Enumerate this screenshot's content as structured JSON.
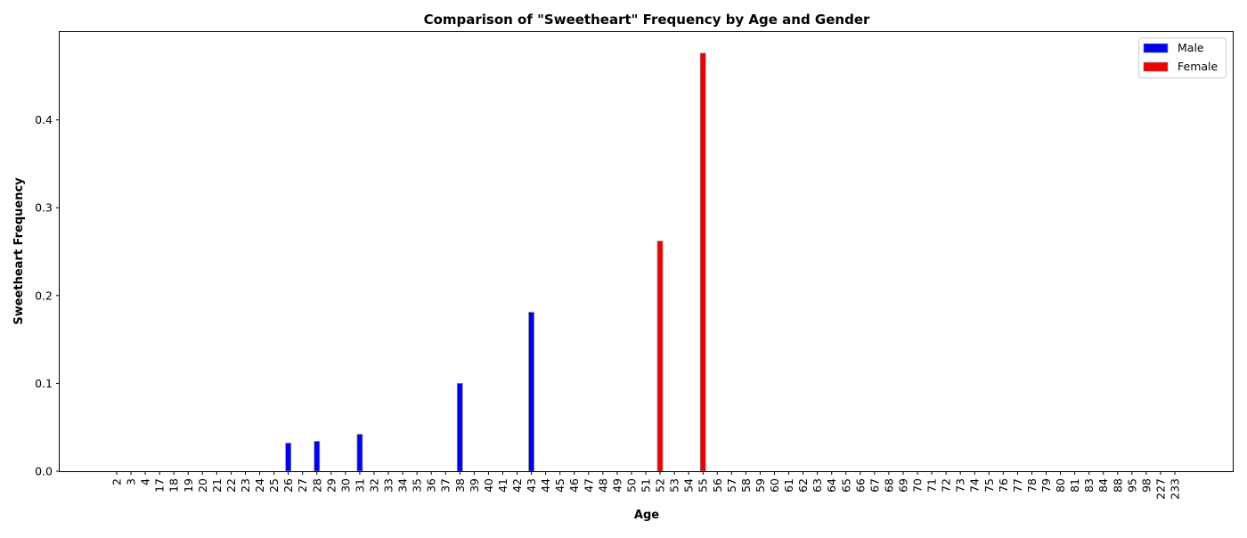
{
  "chart_data": {
    "type": "bar",
    "title": "Comparison of \"Sweetheart\" Frequency by Age and Gender",
    "xlabel": "Age",
    "ylabel": "Sweetheart Frequency",
    "ylim": [
      0,
      0.5
    ],
    "yticks": [
      "0.0",
      "0.1",
      "0.2",
      "0.3",
      "0.4"
    ],
    "grid": false,
    "legend_position": "top-right",
    "categories": [
      "2",
      "3",
      "4",
      "17",
      "18",
      "19",
      "20",
      "21",
      "22",
      "23",
      "24",
      "25",
      "26",
      "27",
      "28",
      "29",
      "30",
      "31",
      "32",
      "33",
      "34",
      "35",
      "36",
      "37",
      "38",
      "39",
      "40",
      "41",
      "42",
      "43",
      "44",
      "45",
      "46",
      "47",
      "48",
      "49",
      "50",
      "51",
      "52",
      "53",
      "54",
      "55",
      "56",
      "57",
      "58",
      "59",
      "60",
      "61",
      "62",
      "63",
      "64",
      "65",
      "66",
      "67",
      "68",
      "69",
      "70",
      "71",
      "72",
      "73",
      "74",
      "75",
      "76",
      "77",
      "78",
      "79",
      "80",
      "81",
      "83",
      "84",
      "88",
      "95",
      "98",
      "227",
      "233"
    ],
    "series": [
      {
        "name": "Male",
        "color": "#0000ee",
        "values": [
          0,
          0,
          0,
          0,
          0,
          0,
          0,
          0,
          0,
          0,
          0,
          0,
          0.032,
          0,
          0.034,
          0,
          0,
          0.042,
          0,
          0,
          0,
          0,
          0,
          0,
          0.1,
          0,
          0,
          0,
          0,
          0.181,
          0,
          0,
          0,
          0,
          0,
          0,
          0,
          0,
          0,
          0,
          0,
          0,
          0,
          0,
          0,
          0,
          0,
          0,
          0,
          0,
          0,
          0,
          0,
          0,
          0,
          0,
          0,
          0,
          0,
          0,
          0,
          0,
          0,
          0,
          0,
          0,
          0,
          0,
          0,
          0,
          0,
          0,
          0,
          0,
          0
        ]
      },
      {
        "name": "Female",
        "color": "#ee0000",
        "values": [
          0,
          0,
          0,
          0,
          0,
          0,
          0,
          0,
          0,
          0,
          0,
          0,
          0,
          0,
          0,
          0,
          0,
          0,
          0,
          0,
          0,
          0,
          0,
          0,
          0,
          0,
          0,
          0,
          0,
          0,
          0,
          0,
          0,
          0,
          0,
          0,
          0,
          0,
          0.262,
          0,
          0,
          0.476,
          0,
          0,
          0,
          0,
          0,
          0,
          0,
          0,
          0,
          0,
          0,
          0,
          0,
          0,
          0,
          0,
          0,
          0,
          0,
          0,
          0,
          0,
          0,
          0,
          0,
          0,
          0,
          0,
          0,
          0,
          0,
          0,
          0
        ]
      }
    ]
  }
}
